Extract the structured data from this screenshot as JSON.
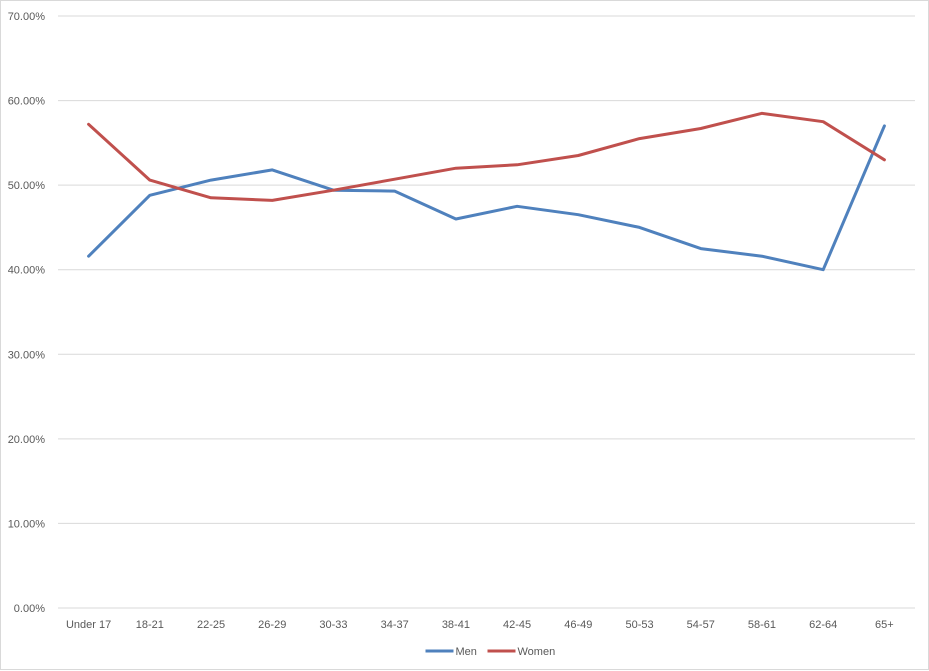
{
  "chart_data": {
    "type": "line",
    "title": "",
    "xlabel": "",
    "ylabel": "",
    "categories": [
      "Under 17",
      "18-21",
      "22-25",
      "26-29",
      "30-33",
      "34-37",
      "38-41",
      "42-45",
      "46-49",
      "50-53",
      "54-57",
      "58-61",
      "62-64",
      "65+"
    ],
    "y_ticks": [
      "0.00%",
      "10.00%",
      "20.00%",
      "30.00%",
      "40.00%",
      "50.00%",
      "60.00%",
      "70.00%"
    ],
    "ylim": [
      0,
      70
    ],
    "grid": true,
    "legend_position": "bottom",
    "series": [
      {
        "name": "Men",
        "color": "#4f81bd",
        "values": [
          41.6,
          48.8,
          50.6,
          51.8,
          49.4,
          49.3,
          46.0,
          47.5,
          46.5,
          45.0,
          42.5,
          41.6,
          40.0,
          57.0
        ]
      },
      {
        "name": "Women",
        "color": "#c0504d",
        "values": [
          57.2,
          50.6,
          48.5,
          48.2,
          49.4,
          50.7,
          52.0,
          52.4,
          53.5,
          55.5,
          56.7,
          58.5,
          57.5,
          53.0
        ]
      }
    ]
  }
}
